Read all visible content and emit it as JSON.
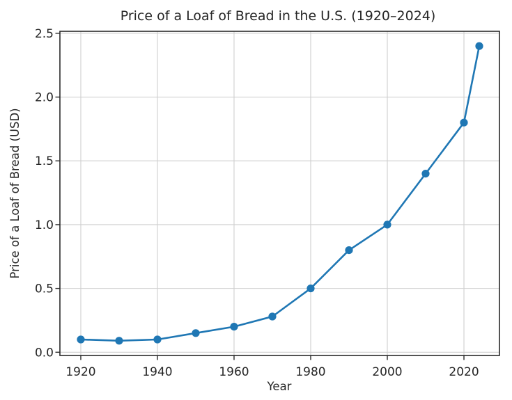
{
  "chart_data": {
    "type": "line",
    "title": "Price of a Loaf of Bread in the U.S. (1920–2024)",
    "xlabel": "Year",
    "ylabel": "Price of a Loaf of Bread (USD)",
    "x": [
      1920,
      1930,
      1940,
      1950,
      1960,
      1970,
      1980,
      1990,
      2000,
      2010,
      2020,
      2024
    ],
    "series": [
      {
        "name": "Price of a Loaf of Bread (USD)",
        "values": [
          0.1,
          0.09,
          0.1,
          0.15,
          0.2,
          0.28,
          0.5,
          0.8,
          1.0,
          1.4,
          1.8,
          2.4
        ]
      }
    ],
    "xtick_labels": [
      "1920",
      "1940",
      "1960",
      "1980",
      "2000",
      "2020"
    ],
    "xticks": [
      1920,
      1940,
      1960,
      1980,
      2000,
      2020
    ],
    "ytick_labels": [
      "0.0",
      "0.5",
      "1.0",
      "1.5",
      "2.0",
      "2.5"
    ],
    "yticks": [
      0.0,
      0.5,
      1.0,
      1.5,
      2.0,
      2.5
    ],
    "xlim": [
      1914.55,
      2029.27
    ],
    "ylim": [
      -0.0255,
      2.5155
    ],
    "grid": true,
    "legend": false,
    "marker_style": "circle",
    "colors": {
      "line": "#1f77b4",
      "marker": "#1f77b4",
      "grid": "#cfcfcf",
      "spine": "#2a2a2a",
      "text": "#262626",
      "background": "#ffffff"
    }
  }
}
